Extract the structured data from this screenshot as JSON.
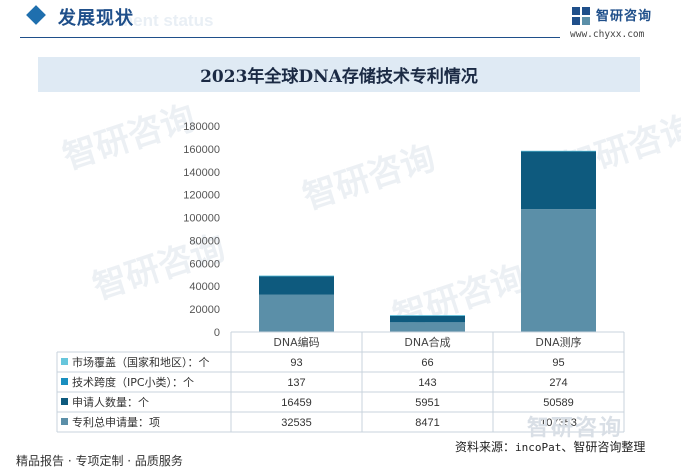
{
  "header": {
    "title": "发展现状",
    "ghost_text": "ment status"
  },
  "logo": {
    "name": "智研咨询",
    "url": "www.chyxx.com"
  },
  "watermark": "智研咨询",
  "footer": {
    "left": "精品报告 · 专项定制 · 品质服务",
    "source_prefix": "资料来源：",
    "source_en": "incoPat",
    "source_suffix": "、智研咨询整理"
  },
  "colors": {
    "applications": "#5b8fa8",
    "applicants": "#0e5a7e",
    "tech_span": "#1a8fbf",
    "market": "#67c6dc",
    "title_band": "#dfeaf4",
    "brand": "#1f4f8a"
  },
  "chart_data": {
    "type": "bar",
    "stacked": true,
    "title": "2023年全球DNA存储技术专利情况",
    "categories": [
      "DNA编码",
      "DNA合成",
      "DNA测序"
    ],
    "ylim": [
      0,
      180000
    ],
    "yticks": [
      "180000",
      "160000",
      "140000",
      "120000",
      "100000",
      "80000",
      "60000",
      "40000",
      "20000",
      "0"
    ],
    "grid": false,
    "legend": "table-left",
    "series": [
      {
        "name": "市场覆盖（国家和地区）：个",
        "values": [
          93,
          66,
          95
        ],
        "value_labels": [
          "93",
          "66",
          "95"
        ],
        "color": "#67c6dc"
      },
      {
        "name": "技术跨度（IPC小类）：个",
        "values": [
          137,
          143,
          274
        ],
        "value_labels": [
          "137",
          "143",
          "274"
        ],
        "color": "#1a8fbf"
      },
      {
        "name": "申请人数量：个",
        "values": [
          16459,
          5951,
          50589
        ],
        "value_labels": [
          "16459",
          "5951",
          "50589"
        ],
        "color": "#0e5a7e"
      },
      {
        "name": "专利总申请量：项",
        "values": [
          32535,
          8471,
          107353
        ],
        "value_labels": [
          "32535",
          "8471",
          "107353"
        ],
        "color": "#5b8fa8"
      }
    ],
    "stack_order": [
      3,
      2,
      1,
      0
    ]
  }
}
